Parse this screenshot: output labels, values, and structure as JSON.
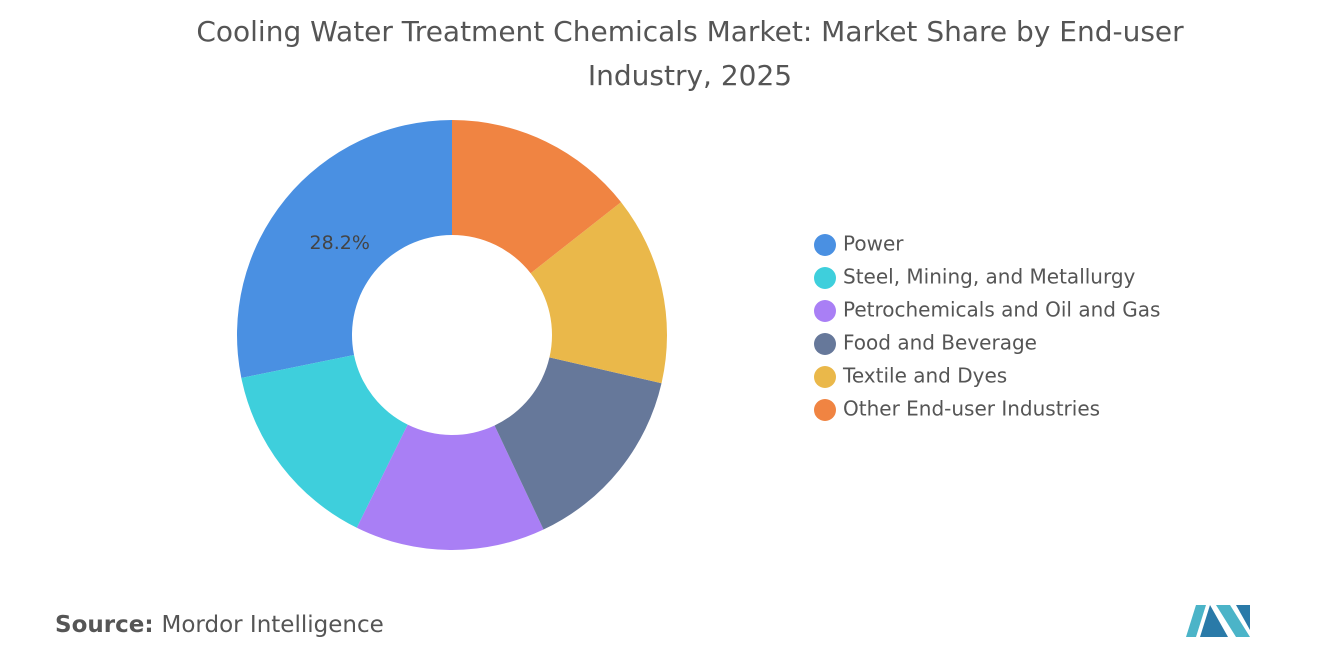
{
  "chart_data": {
    "type": "donut",
    "title": "Cooling Water Treatment Chemicals Market: Market Share by End-user Industry, 2025",
    "categories": [
      "Power",
      "Steel, Mining, and Metallurgy",
      "Petrochemicals and Oil and Gas",
      "Food and Beverage",
      "Textile and Dyes",
      "Other End-user Industries"
    ],
    "values": [
      28.2,
      14.5,
      14.3,
      14.4,
      14.2,
      14.4
    ],
    "value_labels": [
      "28.2%",
      null,
      null,
      null,
      null,
      null
    ],
    "colors": [
      "#4a90e2",
      "#3ecfdc",
      "#a97ff5",
      "#66789a",
      "#eab84a",
      "#f08442"
    ],
    "legend": "right"
  },
  "source_label": "Source:",
  "source": "Mordor Intelligence"
}
